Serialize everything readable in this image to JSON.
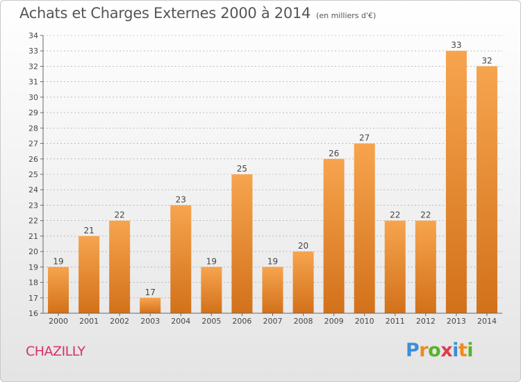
{
  "title": "Achats et Charges Externes 2000 à 2014",
  "subtitle": "(en milliers d'€)",
  "town": "CHAZILLY",
  "logo": {
    "letters": [
      "P",
      "r",
      "o",
      "x",
      "i",
      "t",
      "i"
    ],
    "colors": [
      "#3b8fd9",
      "#f08a1c",
      "#5ab030",
      "#e23b4a",
      "#3b8fd9",
      "#f08a1c",
      "#5ab030"
    ]
  },
  "colors": {
    "bar_top": "#f7a44e",
    "bar_bottom": "#d2711a",
    "axis": "#666666",
    "grid": "#999999"
  },
  "chart_data": {
    "type": "bar",
    "categories": [
      "2000",
      "2001",
      "2002",
      "2003",
      "2004",
      "2005",
      "2006",
      "2007",
      "2008",
      "2009",
      "2010",
      "2011",
      "2012",
      "2013",
      "2014"
    ],
    "values": [
      19,
      21,
      22,
      17,
      23,
      19,
      25,
      19,
      20,
      26,
      27,
      22,
      22,
      33,
      32
    ],
    "ylim": [
      16,
      34
    ],
    "yticks": [
      16,
      17,
      18,
      19,
      20,
      21,
      22,
      23,
      24,
      25,
      26,
      27,
      28,
      29,
      30,
      31,
      32,
      33,
      34
    ],
    "grid": "horizontal dashed"
  }
}
